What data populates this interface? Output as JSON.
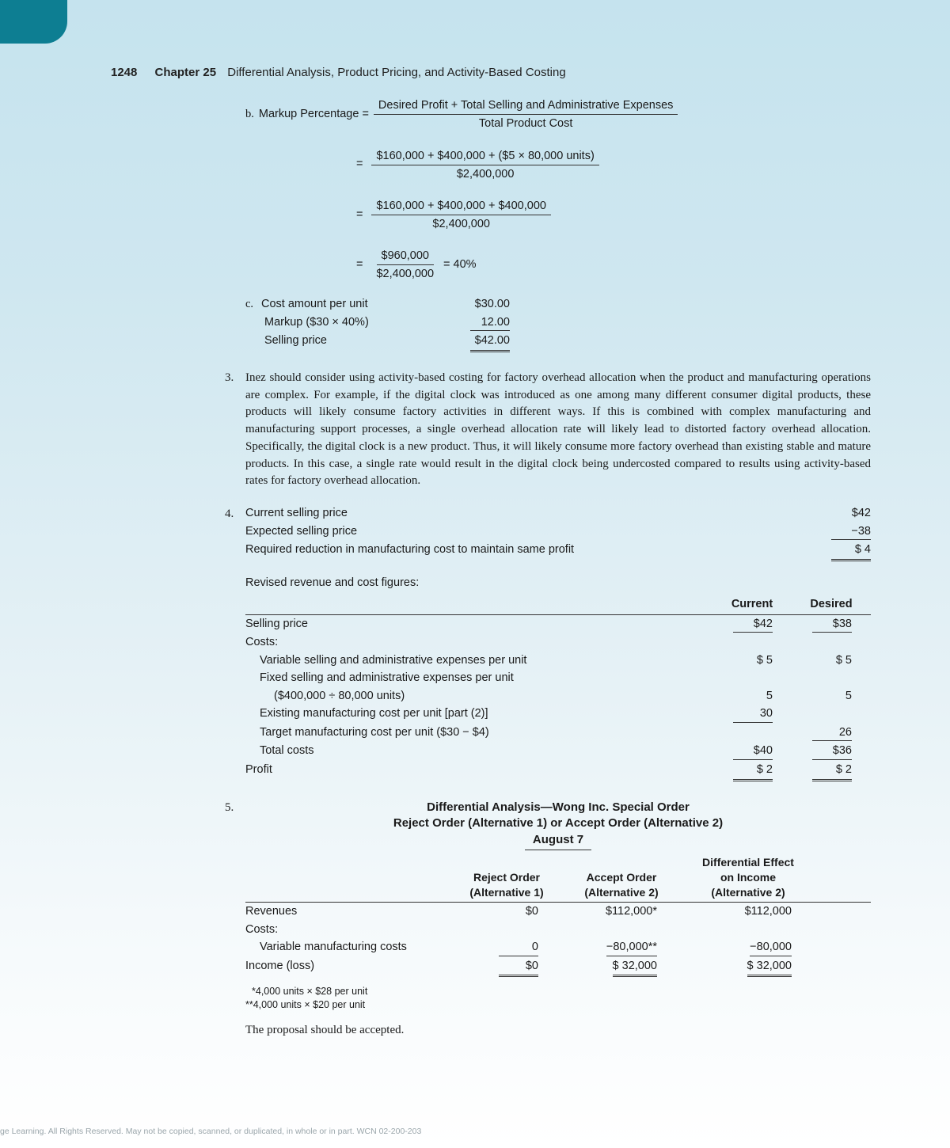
{
  "header": {
    "page_number": "1248",
    "chapter": "Chapter 25",
    "title": "Differential Analysis, Product Pricing, and Activity-Based Costing"
  },
  "item_b": {
    "marker": "b.",
    "label": "Markup Percentage =",
    "frac1_num": "Desired Profit + Total Selling and Administrative Expenses",
    "frac1_den": "Total Product Cost",
    "frac2_num": "$160,000 + $400,000 + ($5 × 80,000 units)",
    "frac2_den": "$2,400,000",
    "frac3_num": "$160,000 + $400,000 + $400,000",
    "frac3_den": "$2,400,000",
    "frac4_num": "$960,000",
    "frac4_den": "$2,400,000",
    "result": "= 40%"
  },
  "item_c": {
    "marker": "c.",
    "rows": [
      {
        "label": "Cost amount per unit",
        "value": "$30.00",
        "style": "plain"
      },
      {
        "label": "Markup ($30 × 40%)",
        "value": "12.00",
        "style": "single"
      },
      {
        "label": "Selling price",
        "value": "$42.00",
        "style": "double"
      }
    ]
  },
  "item_3": {
    "marker": "3.",
    "text": "Inez should consider using activity-based costing for factory overhead allocation when the product and manufacturing operations are complex. For example, if the digital clock was introduced as one among many different consumer digital products, these products will likely consume factory activities in different ways. If this is combined with complex manufacturing and manufacturing support processes, a single overhead allocation rate will likely lead to distorted factory overhead allocation. Specifically, the digital clock is a new product. Thus, it will likely consume more factory overhead than existing stable and mature products. In this case, a single rate would result in the digital clock being undercosted compared to results using activity-based rates for factory overhead allocation."
  },
  "item_4": {
    "marker": "4.",
    "summary": [
      {
        "label": "Current selling price",
        "value": "$42",
        "style": "plain"
      },
      {
        "label": "Expected selling price",
        "value": "−38",
        "style": "single"
      },
      {
        "label": "Required reduction in manufacturing cost to maintain same profit",
        "value": "$  4",
        "style": "double"
      }
    ],
    "subhead": "Revised revenue and cost figures:",
    "col_headers": [
      "",
      "Current",
      "Desired"
    ],
    "rows": [
      {
        "label": "Selling price",
        "c": "$42",
        "d": "$38",
        "cs": "single",
        "ds": "single"
      },
      {
        "label": "Costs:",
        "c": "",
        "d": ""
      },
      {
        "label": "Variable selling and administrative expenses per unit",
        "indent": 1,
        "c": "$  5",
        "d": "$  5"
      },
      {
        "label": "Fixed selling and administrative expenses per unit",
        "indent": 1,
        "c": "",
        "d": ""
      },
      {
        "label": "($400,000 ÷ 80,000 units)",
        "indent": 2,
        "c": "5",
        "d": "5"
      },
      {
        "label": "Existing manufacturing cost per unit [part (2)]",
        "indent": 1,
        "c": "30",
        "d": "",
        "cs": "single"
      },
      {
        "label": "Target manufacturing cost per unit ($30 − $4)",
        "indent": 1,
        "c": "",
        "d": "26",
        "ds": "single"
      },
      {
        "label": "Total costs",
        "indent": 1,
        "c": "$40",
        "d": "$36",
        "cs": "single",
        "ds": "single"
      },
      {
        "label": "Profit",
        "c": "$  2",
        "d": "$  2",
        "cs": "double",
        "ds": "double"
      }
    ]
  },
  "item_5": {
    "marker": "5.",
    "title_1": "Differential Analysis—Wong Inc. Special Order",
    "title_2": "Reject Order (Alternative 1) or Accept Order (Alternative 2)",
    "title_3": "August 7",
    "head_c2a": "Reject Order",
    "head_c2b": "(Alternative 1)",
    "head_c3a": "Accept Order",
    "head_c3b": "(Alternative 2)",
    "head_c4a": "Differential Effect",
    "head_c4b": "on Income",
    "head_c4c": "(Alternative 2)",
    "rows": [
      {
        "label": "Revenues",
        "c2": "$0",
        "c3": "$112,000*",
        "c4": "$112,000"
      },
      {
        "label": "Costs:",
        "c2": "",
        "c3": "",
        "c4": ""
      },
      {
        "label": "Variable manufacturing costs",
        "indent": 1,
        "c2": "0",
        "c3": "−80,000**",
        "c4": "−80,000",
        "s2": "single",
        "s3": "single",
        "s4": "single"
      },
      {
        "label": "Income (loss)",
        "c2": "$0",
        "c3": "$  32,000",
        "c4": "$  32,000",
        "s2": "double",
        "s3": "double",
        "s4": "double"
      }
    ],
    "footnote1": "*4,000 units × $28 per unit",
    "footnote2": "**4,000 units × $20 per unit",
    "conclusion": "The proposal should be accepted."
  },
  "copyright": "ge Learning. All Rights Reserved. May not be copied, scanned, or duplicated, in whole or in part.  WCN 02-200-203"
}
